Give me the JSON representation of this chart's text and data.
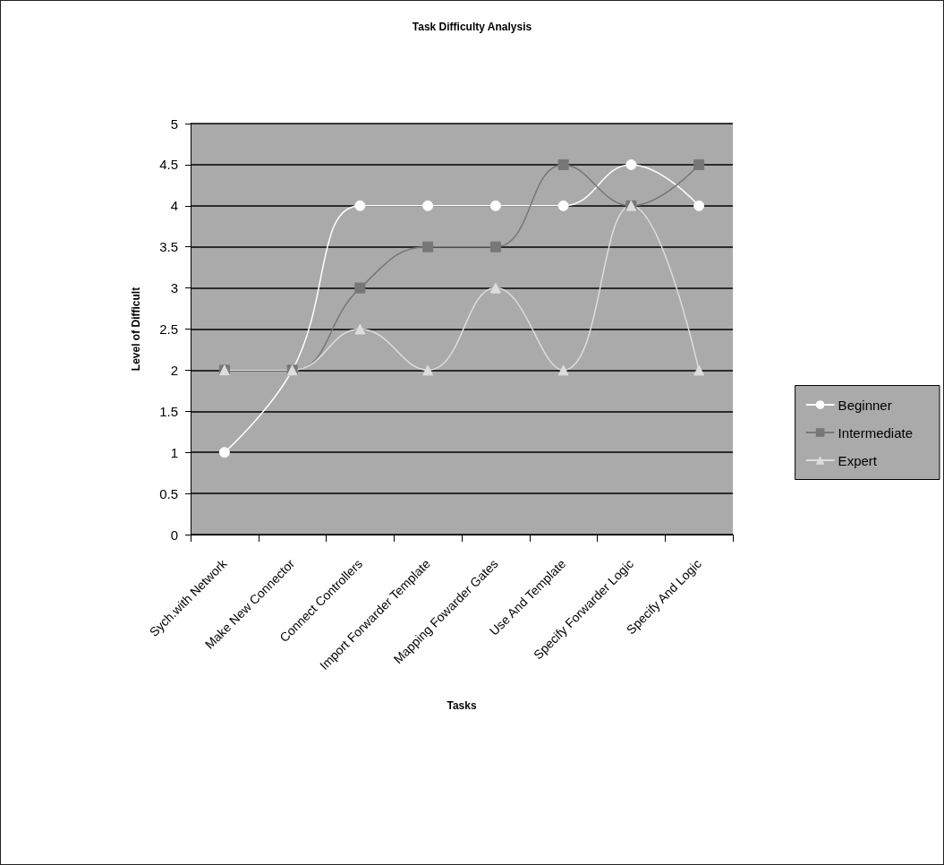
{
  "chart_data": {
    "type": "line",
    "title": "Task Difficulty Analysis",
    "xlabel": "Tasks",
    "ylabel": "Level of Difficult",
    "categories": [
      "Sych.with Network",
      "Make New Connector",
      "Connect Controllers",
      "Import Forwarder Template",
      "Mapping Fowarder Gates",
      "Use And Template",
      "Specify Forwarder Logic",
      "Specify And Logic"
    ],
    "series": [
      {
        "name": "Beginner",
        "color": "#ffffff",
        "marker": "circle",
        "values": [
          1,
          2,
          4,
          4,
          4,
          4,
          4.5,
          4
        ]
      },
      {
        "name": "Intermediate",
        "color": "#777777",
        "marker": "square",
        "values": [
          2,
          2,
          3,
          3.5,
          3.5,
          4.5,
          4,
          4.5
        ]
      },
      {
        "name": "Expert",
        "color": "#dddddd",
        "marker": "triangle",
        "values": [
          2,
          2,
          2.5,
          2,
          3,
          2,
          4,
          2
        ]
      }
    ],
    "ylim": [
      0,
      5
    ],
    "yticks": [
      0,
      0.5,
      1,
      1.5,
      2,
      2.5,
      3,
      3.5,
      4,
      4.5,
      5
    ],
    "grid": "y",
    "legend": "right",
    "line_style": "solid"
  }
}
